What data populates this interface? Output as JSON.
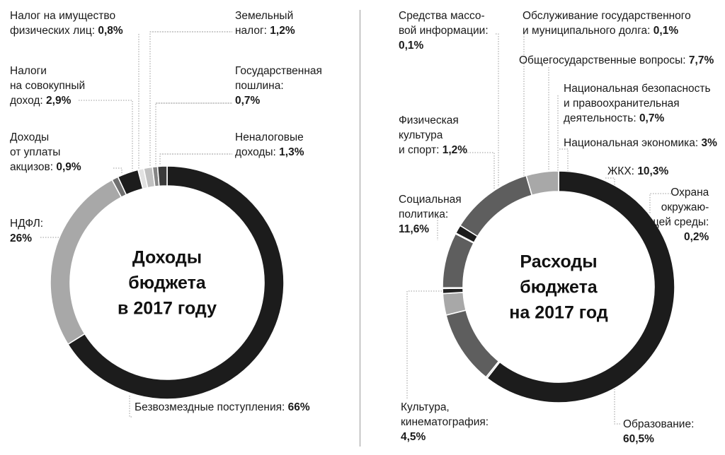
{
  "chart_data": [
    {
      "type": "pie",
      "title": "Доходы бюджета в 2017 году",
      "center_lines": [
        "Доходы",
        "бюджета",
        "в 2017 году"
      ],
      "slices": [
        {
          "name": "Безвозмездные поступления",
          "value": 66,
          "value_label": "66%",
          "color": "#1c1c1c"
        },
        {
          "name": "НДФЛ",
          "value": 26,
          "value_label": "26%",
          "color": "#a8a8a8"
        },
        {
          "name": "Доходы от уплаты акцизов",
          "value": 0.9,
          "value_label": "0,9%",
          "color": "#707070"
        },
        {
          "name": "Налоги на совокупный доход",
          "value": 2.9,
          "value_label": "2,9%",
          "color": "#1c1c1c"
        },
        {
          "name": "Налог на имущество физических лиц",
          "value": 0.8,
          "value_label": "0,8%",
          "color": "#e2e2e2"
        },
        {
          "name": "Земельный налог",
          "value": 1.2,
          "value_label": "1,2%",
          "color": "#c0c0c0"
        },
        {
          "name": "Государственная пошлина",
          "value": 0.7,
          "value_label": "0,7%",
          "color": "#858585"
        },
        {
          "name": "Неналоговые доходы",
          "value": 1.3,
          "value_label": "1,3%",
          "color": "#3a3a3a"
        }
      ]
    },
    {
      "type": "pie",
      "title": "Расходы бюджета на 2017 год",
      "center_lines": [
        "Расходы",
        "бюджета",
        "на 2017 год"
      ],
      "slices": [
        {
          "name": "Образование",
          "value": 60.5,
          "value_label": "60,5%",
          "color": "#1c1c1c"
        },
        {
          "name": "Охрана окружающей среды",
          "value": 0.2,
          "value_label": "0,2%",
          "color": "#9a9a9a"
        },
        {
          "name": "ЖКХ",
          "value": 10.3,
          "value_label": "10,3%",
          "color": "#5e5e5e"
        },
        {
          "name": "Национальная экономика",
          "value": 3,
          "value_label": "3%",
          "color": "#a8a8a8"
        },
        {
          "name": "Национальная безопасность и правоохранительная деятельность",
          "value": 0.7,
          "value_label": "0,7%",
          "color": "#222222"
        },
        {
          "name": "Обслуживание государственного и муниципального долга",
          "value": 0.1,
          "value_label": "0,1%",
          "color": "#bdbdbd"
        },
        {
          "name": "Общегосударственные вопросы",
          "value": 7.7,
          "value_label": "7,7%",
          "color": "#5e5e5e"
        },
        {
          "name": "Средства массовой информации",
          "value": 0.1,
          "value_label": "0,1%",
          "color": "#9a9a9a"
        },
        {
          "name": "Физическая культура и спорт",
          "value": 1.2,
          "value_label": "1,2%",
          "color": "#1c1c1c"
        },
        {
          "name": "Социальная политика",
          "value": 11.6,
          "value_label": "11,6%",
          "color": "#5e5e5e"
        },
        {
          "name": "Культура, кинематография",
          "value": 4.5,
          "value_label": "4,5%",
          "color": "#a8a8a8"
        }
      ]
    }
  ],
  "labels": {
    "income": {
      "imushchestvo": {
        "text": "Налог на имущество\nфизических лиц:",
        "value": "0,8%"
      },
      "sovokupny": {
        "text": "Налоги\nна совокупный\nдоход:",
        "value": "2,9%"
      },
      "akcizy": {
        "text": "Доходы\nот уплаты\nакцизов:",
        "value": "0,9%"
      },
      "ndfl": {
        "text": "НДФЛ:",
        "value": "26%"
      },
      "zemelny": {
        "text": "Земельный\nналог:",
        "value": "1,2%"
      },
      "poshlina": {
        "text": "Государственная\nпошлина:",
        "value": "0,7%"
      },
      "nenalog": {
        "text": "Неналоговые\nдоходы:",
        "value": "1,3%"
      },
      "bezvozmezd": {
        "text": "Безвозмездные поступления:",
        "value": "66%"
      }
    },
    "expense": {
      "smi": {
        "text": "Средства массо-\nвой информации:",
        "value": "0,1%"
      },
      "dolg": {
        "text": "Обслуживание государственного\nи муниципального долга:",
        "value": "0,1%"
      },
      "obshchegos": {
        "text": "Общегосударственные вопросы:",
        "value": "7,7%"
      },
      "bezopasnost": {
        "text": "Национальная безопасность\nи правоохранительная\nдеятельность:",
        "value": "0,7%"
      },
      "sport": {
        "text": "Физическая\nкультура\nи спорт:",
        "value": "1,2%"
      },
      "ekonomika": {
        "text": "Национальная экономика:",
        "value": "3%"
      },
      "zhkh": {
        "text": "ЖКХ:",
        "value": "10,3%"
      },
      "okhrana": {
        "text": "Охрана\nокружаю-\nщей среды:",
        "value": "0,2%"
      },
      "socpolitika": {
        "text": "Социальная\nполитика:",
        "value": "11,6%"
      },
      "kultura": {
        "text": "Культура,\nкинематография:",
        "value": "4,5%"
      },
      "obrazovanie": {
        "text": "Образование:",
        "value": "60,5%"
      }
    }
  }
}
